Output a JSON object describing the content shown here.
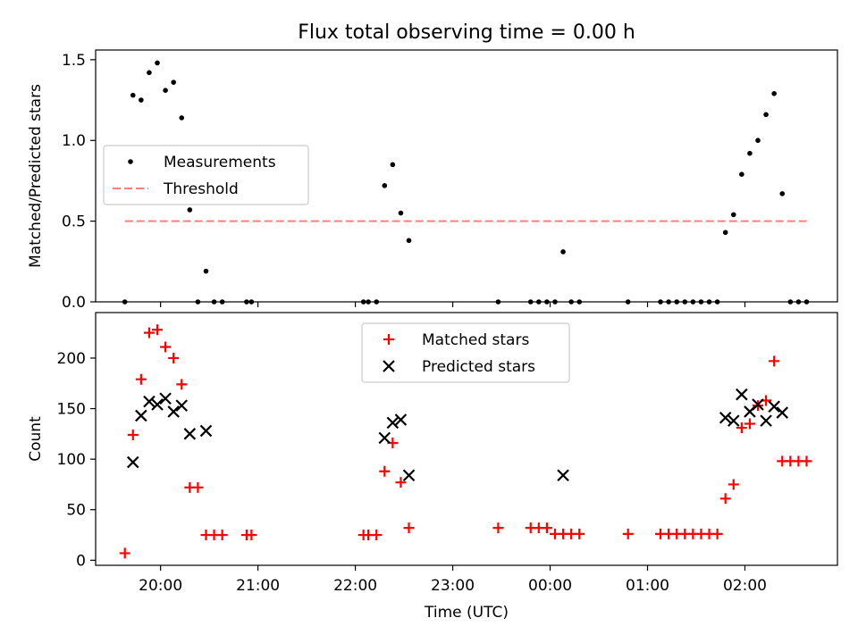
{
  "chart_data": [
    {
      "type": "scatter",
      "title": "Flux total observing time = 0.00 h",
      "ylabel": "Matched/Predicted stars",
      "xlabel": "",
      "xlim": [
        "19:20",
        "02:57"
      ],
      "ylim": [
        0,
        1.56
      ],
      "yticks": [
        "0.0",
        "0.5",
        "1.0",
        "1.5"
      ],
      "yticks_values": [
        0,
        0.5,
        1.0,
        1.5
      ],
      "legend_position": "center-left",
      "series": [
        {
          "name": "Measurements",
          "marker": "dot",
          "color": "#000000",
          "points": [
            [
              "19:38",
              0.0
            ],
            [
              "19:43",
              1.28
            ],
            [
              "19:48",
              1.25
            ],
            [
              "19:53",
              1.42
            ],
            [
              "19:58",
              1.48
            ],
            [
              "20:03",
              1.31
            ],
            [
              "20:08",
              1.36
            ],
            [
              "20:13",
              1.14
            ],
            [
              "20:18",
              0.57
            ],
            [
              "20:23",
              0.0
            ],
            [
              "20:28",
              0.19
            ],
            [
              "20:33",
              0.0
            ],
            [
              "20:38",
              0.0
            ],
            [
              "20:53",
              0.0
            ],
            [
              "20:56",
              0.0
            ],
            [
              "22:05",
              0.0
            ],
            [
              "22:08",
              0.0
            ],
            [
              "22:13",
              0.0
            ],
            [
              "22:18",
              0.72
            ],
            [
              "22:23",
              0.85
            ],
            [
              "22:28",
              0.55
            ],
            [
              "22:33",
              0.38
            ],
            [
              "23:28",
              0.0
            ],
            [
              "23:48",
              0.0
            ],
            [
              "23:53",
              0.0
            ],
            [
              "23:58",
              0.0
            ],
            [
              "00:03",
              0.0
            ],
            [
              "00:08",
              0.31
            ],
            [
              "00:13",
              0.0
            ],
            [
              "00:18",
              0.0
            ],
            [
              "00:48",
              0.0
            ],
            [
              "01:08",
              0.0
            ],
            [
              "01:13",
              0.0
            ],
            [
              "01:18",
              0.0
            ],
            [
              "01:23",
              0.0
            ],
            [
              "01:28",
              0.0
            ],
            [
              "01:33",
              0.0
            ],
            [
              "01:38",
              0.0
            ],
            [
              "01:43",
              0.0
            ],
            [
              "01:48",
              0.43
            ],
            [
              "01:53",
              0.54
            ],
            [
              "01:58",
              0.79
            ],
            [
              "02:03",
              0.92
            ],
            [
              "02:08",
              1.0
            ],
            [
              "02:13",
              1.16
            ],
            [
              "02:18",
              1.29
            ],
            [
              "02:23",
              0.67
            ],
            [
              "02:28",
              0.0
            ],
            [
              "02:33",
              0.0
            ],
            [
              "02:38",
              0.0
            ]
          ]
        },
        {
          "name": "Threshold",
          "marker": "dashed-line",
          "color": "#ff7f7f",
          "points": [
            [
              "19:38",
              0.5
            ],
            [
              "02:38",
              0.5
            ]
          ]
        }
      ]
    },
    {
      "type": "scatter",
      "title": "",
      "ylabel": "Count",
      "xlabel": "Time (UTC)",
      "xlim": [
        "19:20",
        "02:57"
      ],
      "ylim": [
        -5,
        245
      ],
      "yticks": [
        "0",
        "50",
        "100",
        "150",
        "200"
      ],
      "yticks_values": [
        0,
        50,
        100,
        150,
        200
      ],
      "xticks": [
        "20:00",
        "21:00",
        "22:00",
        "23:00",
        "00:00",
        "01:00",
        "02:00"
      ],
      "legend_position": "upper-center",
      "series": [
        {
          "name": "Matched stars",
          "marker": "plus",
          "color": "#ff0000",
          "points": [
            [
              "19:38",
              7
            ],
            [
              "19:43",
              124
            ],
            [
              "19:48",
              179
            ],
            [
              "19:53",
              225
            ],
            [
              "19:58",
              228
            ],
            [
              "20:03",
              211
            ],
            [
              "20:08",
              200
            ],
            [
              "20:13",
              174
            ],
            [
              "20:18",
              72
            ],
            [
              "20:23",
              72
            ],
            [
              "20:28",
              25
            ],
            [
              "20:33",
              25
            ],
            [
              "20:38",
              25
            ],
            [
              "20:53",
              25
            ],
            [
              "20:56",
              25
            ],
            [
              "22:05",
              25
            ],
            [
              "22:08",
              25
            ],
            [
              "22:13",
              25
            ],
            [
              "22:18",
              88
            ],
            [
              "22:23",
              116
            ],
            [
              "22:28",
              77
            ],
            [
              "22:33",
              32
            ],
            [
              "23:28",
              32
            ],
            [
              "23:48",
              32
            ],
            [
              "23:53",
              32
            ],
            [
              "23:58",
              32
            ],
            [
              "00:03",
              26
            ],
            [
              "00:08",
              26
            ],
            [
              "00:13",
              26
            ],
            [
              "00:18",
              26
            ],
            [
              "00:48",
              26
            ],
            [
              "01:08",
              26
            ],
            [
              "01:13",
              26
            ],
            [
              "01:18",
              26
            ],
            [
              "01:23",
              26
            ],
            [
              "01:28",
              26
            ],
            [
              "01:33",
              26
            ],
            [
              "01:38",
              26
            ],
            [
              "01:43",
              26
            ],
            [
              "01:48",
              61
            ],
            [
              "01:53",
              75
            ],
            [
              "01:58",
              131
            ],
            [
              "02:03",
              135
            ],
            [
              "02:08",
              153
            ],
            [
              "02:13",
              158
            ],
            [
              "02:18",
              197
            ],
            [
              "02:23",
              98
            ],
            [
              "02:28",
              98
            ],
            [
              "02:33",
              98
            ],
            [
              "02:38",
              98
            ]
          ]
        },
        {
          "name": "Predicted stars",
          "marker": "x",
          "color": "#000000",
          "points": [
            [
              "19:43",
              97
            ],
            [
              "19:48",
              143
            ],
            [
              "19:53",
              157
            ],
            [
              "19:58",
              154
            ],
            [
              "20:03",
              160
            ],
            [
              "20:08",
              147
            ],
            [
              "20:13",
              153
            ],
            [
              "20:18",
              125
            ],
            [
              "20:28",
              128
            ],
            [
              "22:18",
              121
            ],
            [
              "22:23",
              136
            ],
            [
              "22:28",
              139
            ],
            [
              "22:33",
              84
            ],
            [
              "00:08",
              84
            ],
            [
              "01:48",
              141
            ],
            [
              "01:53",
              138
            ],
            [
              "01:58",
              164
            ],
            [
              "02:03",
              147
            ],
            [
              "02:08",
              154
            ],
            [
              "02:13",
              138
            ],
            [
              "02:18",
              152
            ],
            [
              "02:23",
              146
            ]
          ]
        }
      ]
    }
  ]
}
